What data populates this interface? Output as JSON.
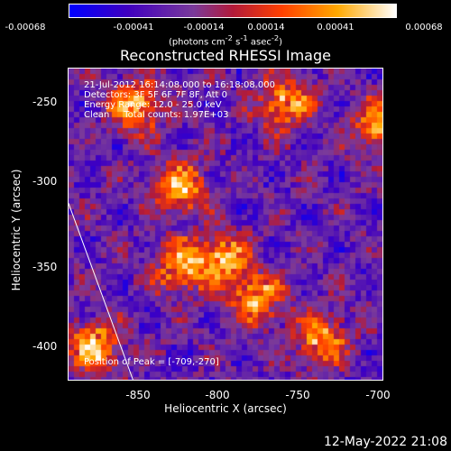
{
  "colorbar": {
    "ticks": [
      "-0.00068",
      "-0.00041",
      "-0.00014",
      "0.00014",
      "0.00041",
      "0.00068"
    ],
    "units_html": "(photons cm<sup>-2</sup> s<sup>-1</sup> asec<sup>-2</sup>)"
  },
  "title": "Reconstructed RHESSI Image",
  "annotations": {
    "time_range": "21-Jul-2012 16:14:08.000 to 16:18:08.000",
    "detectors": "Detectors: 3F 5F 6F 7F 8F, Att 0",
    "energy_range": "Energy Range: 12.0 - 25.0 keV",
    "clean_counts": "Clean     Total counts: 1.97E+03",
    "peak": "Position of Peak = [-709,-270]"
  },
  "axes": {
    "xlabel": "Heliocentric X (arcsec)",
    "ylabel": "Heliocentric Y (arcsec)",
    "xticks": [
      "-850",
      "-800",
      "-750",
      "-700"
    ],
    "yticks": [
      "-250",
      "-300",
      "-350",
      "-400"
    ]
  },
  "chart_data": {
    "type": "heatmap",
    "title": "Reconstructed RHESSI Image",
    "xlabel": "Heliocentric X (arcsec)",
    "ylabel": "Heliocentric Y (arcsec)",
    "xlim": [
      -895,
      -700
    ],
    "ylim": [
      -422,
      -228
    ],
    "xticks": [
      -850,
      -800,
      -750,
      -700
    ],
    "yticks": [
      -250,
      -300,
      -350,
      -400
    ],
    "color_range": [
      -0.00068,
      0.00068
    ],
    "colormap": [
      "#0000ff",
      "#4000c0",
      "#7a3a9a",
      "#b21a3a",
      "#ff4000",
      "#ffa800",
      "#ffffff"
    ],
    "bright_sources": [
      {
        "x": -827,
        "y": -300
      },
      {
        "x": -827,
        "y": -350
      },
      {
        "x": -780,
        "y": -370
      },
      {
        "x": -880,
        "y": -400
      },
      {
        "x": -740,
        "y": -395
      },
      {
        "x": -762,
        "y": -248
      },
      {
        "x": -703,
        "y": -262
      },
      {
        "x": -800,
        "y": -345
      },
      {
        "x": -855,
        "y": -250
      }
    ],
    "limb_line": [
      {
        "x": -895,
        "y": -312
      },
      {
        "x": -855,
        "y": -422
      }
    ],
    "peak_position": {
      "x": -709,
      "y": -270
    }
  },
  "footer": {
    "timestamp": "12-May-2022 21:08"
  }
}
